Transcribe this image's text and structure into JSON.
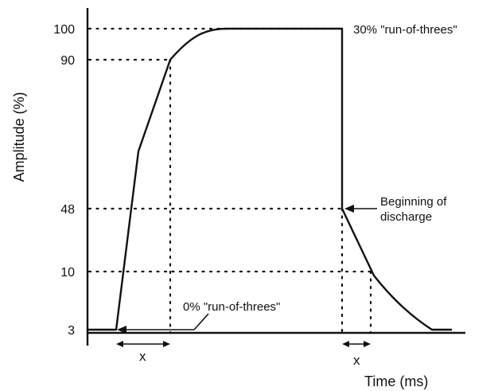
{
  "axes": {
    "y_title": "Amplitude (%)",
    "x_title": "Time  (ms)"
  },
  "y_ticks": [
    "100",
    "90",
    "48",
    "10",
    "3"
  ],
  "annotations": {
    "top_right": "30% \"run-of-threes\"",
    "discharge_line1": "Beginning  of",
    "discharge_line2": "discharge",
    "zero_percent": "0% \"run-of-threes\"",
    "x_left": "x",
    "x_right": "x"
  }
}
